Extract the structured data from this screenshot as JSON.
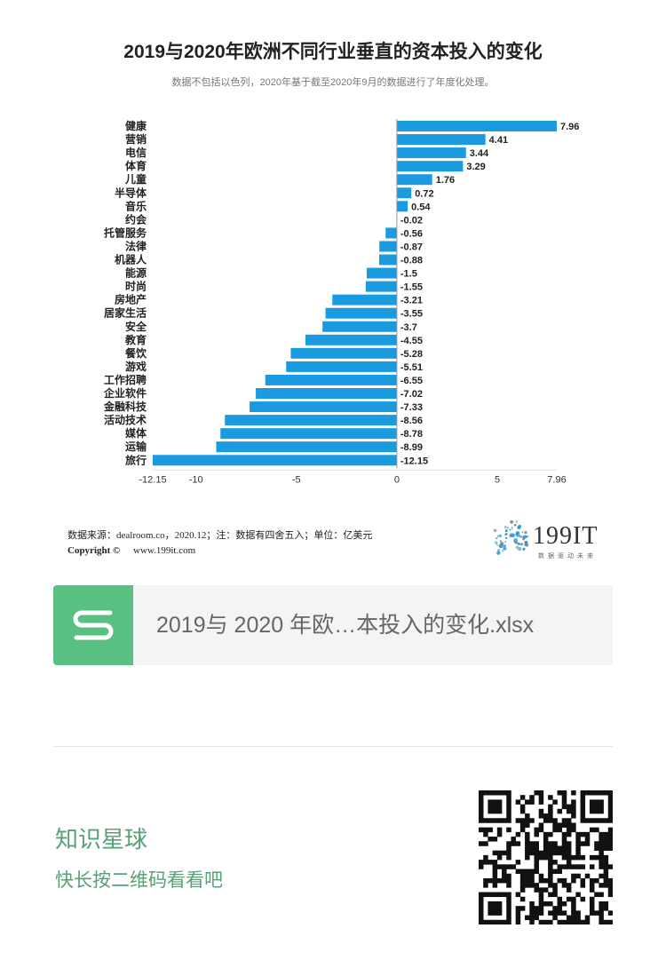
{
  "header": {
    "title": "2019与2020年欧洲不同行业垂直的资本投入的变化",
    "subtitle": "数据不包括以色列，2020年基于截至2020年9月的数据进行了年度化处理。"
  },
  "chart_data": {
    "type": "bar",
    "orientation": "horizontal",
    "categories": [
      "健康",
      "营销",
      "电信",
      "体育",
      "儿童",
      "半导体",
      "音乐",
      "约会",
      "托管服务",
      "法律",
      "机器人",
      "能源",
      "时尚",
      "房地产",
      "居家生活",
      "安全",
      "教育",
      "餐饮",
      "游戏",
      "工作招聘",
      "企业软件",
      "金融科技",
      "活动技术",
      "媒体",
      "运输",
      "旅行"
    ],
    "values": [
      7.96,
      4.41,
      3.44,
      3.29,
      1.76,
      0.72,
      0.54,
      -0.02,
      -0.56,
      -0.87,
      -0.88,
      -1.5,
      -1.55,
      -3.21,
      -3.55,
      -3.7,
      -4.55,
      -5.28,
      -5.51,
      -6.55,
      -7.02,
      -7.33,
      -8.56,
      -8.78,
      -8.99,
      -12.15
    ],
    "value_labels": [
      "7.96",
      "4.41",
      "3.44",
      "3.29",
      "1.76",
      "0.72",
      "0.54",
      "-0.02",
      "-0.56",
      "-0.87",
      "-0.88",
      "-1.5",
      "-1.55",
      "-3.21",
      "-3.55",
      "-3.7",
      "-4.55",
      "-5.28",
      "-5.51",
      "-6.55",
      "-7.02",
      "-7.33",
      "-8.56",
      "-8.78",
      "-8.99",
      "-12.15"
    ],
    "xticks": [
      -12.15,
      -10,
      -5,
      0,
      5,
      7.96
    ],
    "xtick_labels": [
      "-12.15",
      "-10",
      "-5",
      "0",
      "5",
      "7.96"
    ],
    "xlim": [
      -12.15,
      7.96
    ],
    "bar_color": "#1a9be0",
    "grid": false,
    "legend": "none"
  },
  "footer": {
    "source": "数据来源：dealroom.co，2020.12；注：数据有四舍五入；单位：亿美元",
    "copyright_label": "Copyright ©",
    "website": "www.199it.com",
    "brand_name": "199IT",
    "brand_tagline": "数据驱动未来",
    "brand_color": "#1a9be0"
  },
  "attachment": {
    "icon_letter": "S",
    "icon_color": "#58c080",
    "file_name": "2019与 2020 年欧…本投入的变化.xlsx"
  },
  "promo": {
    "title": "知识星球",
    "subtitle": "快长按二维码看看吧",
    "text_color": "#58a078"
  }
}
